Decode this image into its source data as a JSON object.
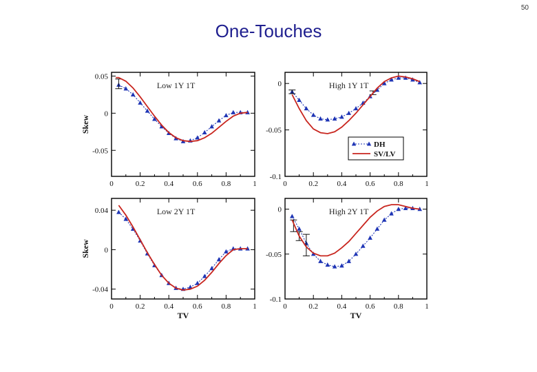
{
  "page": {
    "number": "50",
    "title": "One-Touches"
  },
  "colors": {
    "dh": "#1f35b5",
    "svlv": "#c8251e",
    "frame": "#000000",
    "title": "#1f1f8f"
  },
  "legend": {
    "placement": "inside lower-right of High 1Y 1T panel",
    "entries": [
      "DH",
      "SV/LV"
    ]
  },
  "chart_data": [
    {
      "type": "line",
      "title": "Low 1Y 1T",
      "xlabel": "",
      "ylabel": "Skew",
      "xlim": [
        0,
        1
      ],
      "ylim": [
        -0.085,
        0.055
      ],
      "xticks": [
        0,
        0.2,
        0.4,
        0.6,
        0.8,
        1
      ],
      "xtick_labels": [
        "0",
        "0.2",
        "0.4",
        "0.6",
        "0.8",
        "1"
      ],
      "yticks": [
        0.05,
        0,
        -0.05
      ],
      "ytick_labels": [
        "0.05",
        "0",
        "-0.05"
      ],
      "grid": false,
      "series": [
        {
          "name": "DH",
          "marker": "triangle",
          "x": [
            0.05,
            0.1,
            0.15,
            0.2,
            0.25,
            0.3,
            0.35,
            0.4,
            0.45,
            0.5,
            0.55,
            0.6,
            0.65,
            0.7,
            0.75,
            0.8,
            0.85,
            0.9,
            0.95
          ],
          "y": [
            0.038,
            0.033,
            0.025,
            0.014,
            0.003,
            -0.008,
            -0.018,
            -0.027,
            -0.034,
            -0.038,
            -0.037,
            -0.033,
            -0.026,
            -0.018,
            -0.01,
            -0.003,
            0.001,
            0.001,
            0.001
          ],
          "error_bars": [
            {
              "x": 0.05,
              "low": 0.033,
              "high": 0.046
            }
          ]
        },
        {
          "name": "SV/LV",
          "x": [
            0.03,
            0.05,
            0.1,
            0.15,
            0.2,
            0.25,
            0.3,
            0.35,
            0.4,
            0.45,
            0.5,
            0.55,
            0.6,
            0.65,
            0.7,
            0.75,
            0.8,
            0.85,
            0.9,
            0.95
          ],
          "y": [
            0.048,
            0.048,
            0.043,
            0.034,
            0.022,
            0.009,
            -0.004,
            -0.016,
            -0.026,
            -0.033,
            -0.037,
            -0.038,
            -0.037,
            -0.033,
            -0.027,
            -0.019,
            -0.011,
            -0.004,
            0.0,
            0.001
          ]
        }
      ]
    },
    {
      "type": "line",
      "title": "High 1Y 1T",
      "xlabel": "",
      "ylabel": "",
      "xlim": [
        0,
        1
      ],
      "ylim": [
        -0.1,
        0.012
      ],
      "xticks": [
        0,
        0.2,
        0.4,
        0.6,
        0.8,
        1
      ],
      "xtick_labels": [
        "0",
        "0.2",
        "0.4",
        "0.6",
        "0.8",
        "1"
      ],
      "yticks": [
        0,
        -0.05,
        -0.1
      ],
      "ytick_labels": [
        "0",
        "-0.05",
        "-0.1"
      ],
      "grid": false,
      "series": [
        {
          "name": "DH",
          "marker": "triangle",
          "x": [
            0.05,
            0.1,
            0.15,
            0.2,
            0.25,
            0.3,
            0.35,
            0.4,
            0.45,
            0.5,
            0.55,
            0.6,
            0.65,
            0.7,
            0.75,
            0.8,
            0.85,
            0.9,
            0.95
          ],
          "y": [
            -0.009,
            -0.018,
            -0.027,
            -0.034,
            -0.038,
            -0.039,
            -0.038,
            -0.036,
            -0.032,
            -0.027,
            -0.021,
            -0.014,
            -0.007,
            0.0,
            0.004,
            0.006,
            0.006,
            0.004,
            0.001
          ],
          "error_bars": [
            {
              "x": 0.05,
              "low": -0.011,
              "high": -0.007
            },
            {
              "x": 0.62,
              "low": -0.012,
              "high": -0.008
            }
          ]
        },
        {
          "name": "SV/LV",
          "x": [
            0.05,
            0.1,
            0.15,
            0.2,
            0.25,
            0.3,
            0.35,
            0.4,
            0.45,
            0.5,
            0.55,
            0.6,
            0.65,
            0.7,
            0.75,
            0.8,
            0.85,
            0.9,
            0.95
          ],
          "y": [
            -0.012,
            -0.027,
            -0.04,
            -0.049,
            -0.053,
            -0.054,
            -0.052,
            -0.047,
            -0.04,
            -0.032,
            -0.023,
            -0.014,
            -0.005,
            0.002,
            0.006,
            0.008,
            0.007,
            0.005,
            0.002
          ]
        }
      ]
    },
    {
      "type": "line",
      "title": "Low 2Y 1T",
      "xlabel": "TV",
      "ylabel": "Skew",
      "xlim": [
        0,
        1
      ],
      "ylim": [
        -0.05,
        0.052
      ],
      "xticks": [
        0,
        0.2,
        0.4,
        0.6,
        0.8,
        1
      ],
      "xtick_labels": [
        "0",
        "0.2",
        "0.4",
        "0.6",
        "0.8",
        "1"
      ],
      "yticks": [
        0.04,
        0,
        -0.04
      ],
      "ytick_labels": [
        "0.04",
        "0",
        "-0.04"
      ],
      "grid": false,
      "series": [
        {
          "name": "DH",
          "marker": "triangle",
          "x": [
            0.05,
            0.1,
            0.15,
            0.2,
            0.25,
            0.3,
            0.35,
            0.4,
            0.45,
            0.5,
            0.55,
            0.6,
            0.65,
            0.7,
            0.75,
            0.8,
            0.85,
            0.9,
            0.95
          ],
          "y": [
            0.038,
            0.031,
            0.021,
            0.009,
            -0.004,
            -0.016,
            -0.026,
            -0.034,
            -0.039,
            -0.04,
            -0.038,
            -0.034,
            -0.027,
            -0.019,
            -0.01,
            -0.002,
            0.001,
            0.001,
            0.001
          ]
        },
        {
          "name": "SV/LV",
          "x": [
            0.05,
            0.1,
            0.15,
            0.2,
            0.25,
            0.3,
            0.35,
            0.4,
            0.45,
            0.5,
            0.55,
            0.6,
            0.65,
            0.7,
            0.75,
            0.8,
            0.85,
            0.9,
            0.95
          ],
          "y": [
            0.045,
            0.035,
            0.023,
            0.01,
            -0.003,
            -0.015,
            -0.026,
            -0.034,
            -0.039,
            -0.041,
            -0.04,
            -0.037,
            -0.031,
            -0.023,
            -0.014,
            -0.006,
            0.0,
            0.001,
            0.001
          ]
        }
      ]
    },
    {
      "type": "line",
      "title": "High 2Y 1T",
      "xlabel": "TV",
      "ylabel": "",
      "xlim": [
        0,
        1
      ],
      "ylim": [
        -0.1,
        0.012
      ],
      "xticks": [
        0,
        0.2,
        0.4,
        0.6,
        0.8,
        1
      ],
      "xtick_labels": [
        "0",
        "0.2",
        "0.4",
        "0.6",
        "0.8",
        "1"
      ],
      "yticks": [
        0,
        -0.05,
        -0.1
      ],
      "ytick_labels": [
        "0",
        "-0.05",
        "-0.1"
      ],
      "grid": false,
      "series": [
        {
          "name": "DH",
          "marker": "triangle",
          "x": [
            0.05,
            0.1,
            0.15,
            0.2,
            0.25,
            0.3,
            0.35,
            0.4,
            0.45,
            0.5,
            0.55,
            0.6,
            0.65,
            0.7,
            0.75,
            0.8,
            0.85,
            0.9,
            0.95
          ],
          "y": [
            -0.008,
            -0.022,
            -0.038,
            -0.05,
            -0.058,
            -0.062,
            -0.064,
            -0.063,
            -0.058,
            -0.05,
            -0.041,
            -0.032,
            -0.022,
            -0.012,
            -0.005,
            0.0,
            0.001,
            0.001,
            0.0
          ],
          "error_bars": [
            {
              "x": 0.06,
              "low": -0.025,
              "high": -0.012
            },
            {
              "x": 0.1,
              "low": -0.035,
              "high": -0.025
            },
            {
              "x": 0.15,
              "low": -0.052,
              "high": -0.028
            }
          ]
        },
        {
          "name": "SV/LV",
          "x": [
            0.05,
            0.1,
            0.15,
            0.2,
            0.25,
            0.3,
            0.35,
            0.4,
            0.45,
            0.5,
            0.55,
            0.6,
            0.65,
            0.7,
            0.75,
            0.8,
            0.85,
            0.9,
            0.95
          ],
          "y": [
            -0.012,
            -0.03,
            -0.042,
            -0.049,
            -0.052,
            -0.052,
            -0.049,
            -0.043,
            -0.036,
            -0.027,
            -0.018,
            -0.009,
            -0.002,
            0.003,
            0.005,
            0.005,
            0.003,
            0.001,
            0.0
          ]
        }
      ]
    }
  ]
}
